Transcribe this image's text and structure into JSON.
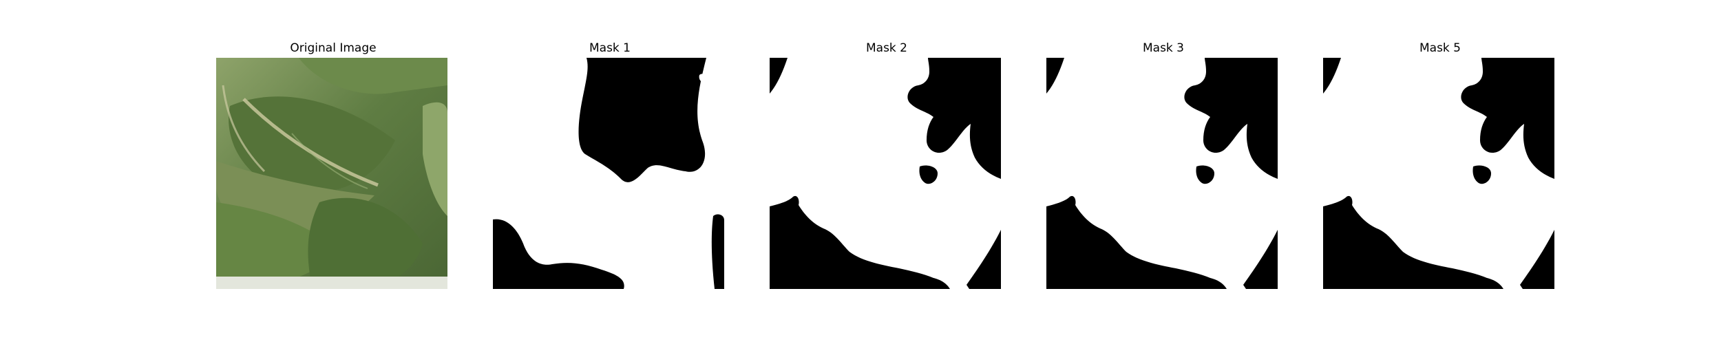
{
  "panels": [
    {
      "title": "Original Image",
      "kind": "photo"
    },
    {
      "title": "Mask 1",
      "kind": "mask"
    },
    {
      "title": "Mask 2",
      "kind": "mask"
    },
    {
      "title": "Mask 3",
      "kind": "mask"
    },
    {
      "title": "Mask 5",
      "kind": "mask"
    }
  ],
  "colors": {
    "mask_foreground": "#ffffff",
    "mask_background": "#000000",
    "leaf_dark": "#4f6b37",
    "leaf_mid": "#6f8c4c",
    "leaf_light": "#a5b57e",
    "leaf_highlight": "#d9dcc4"
  }
}
